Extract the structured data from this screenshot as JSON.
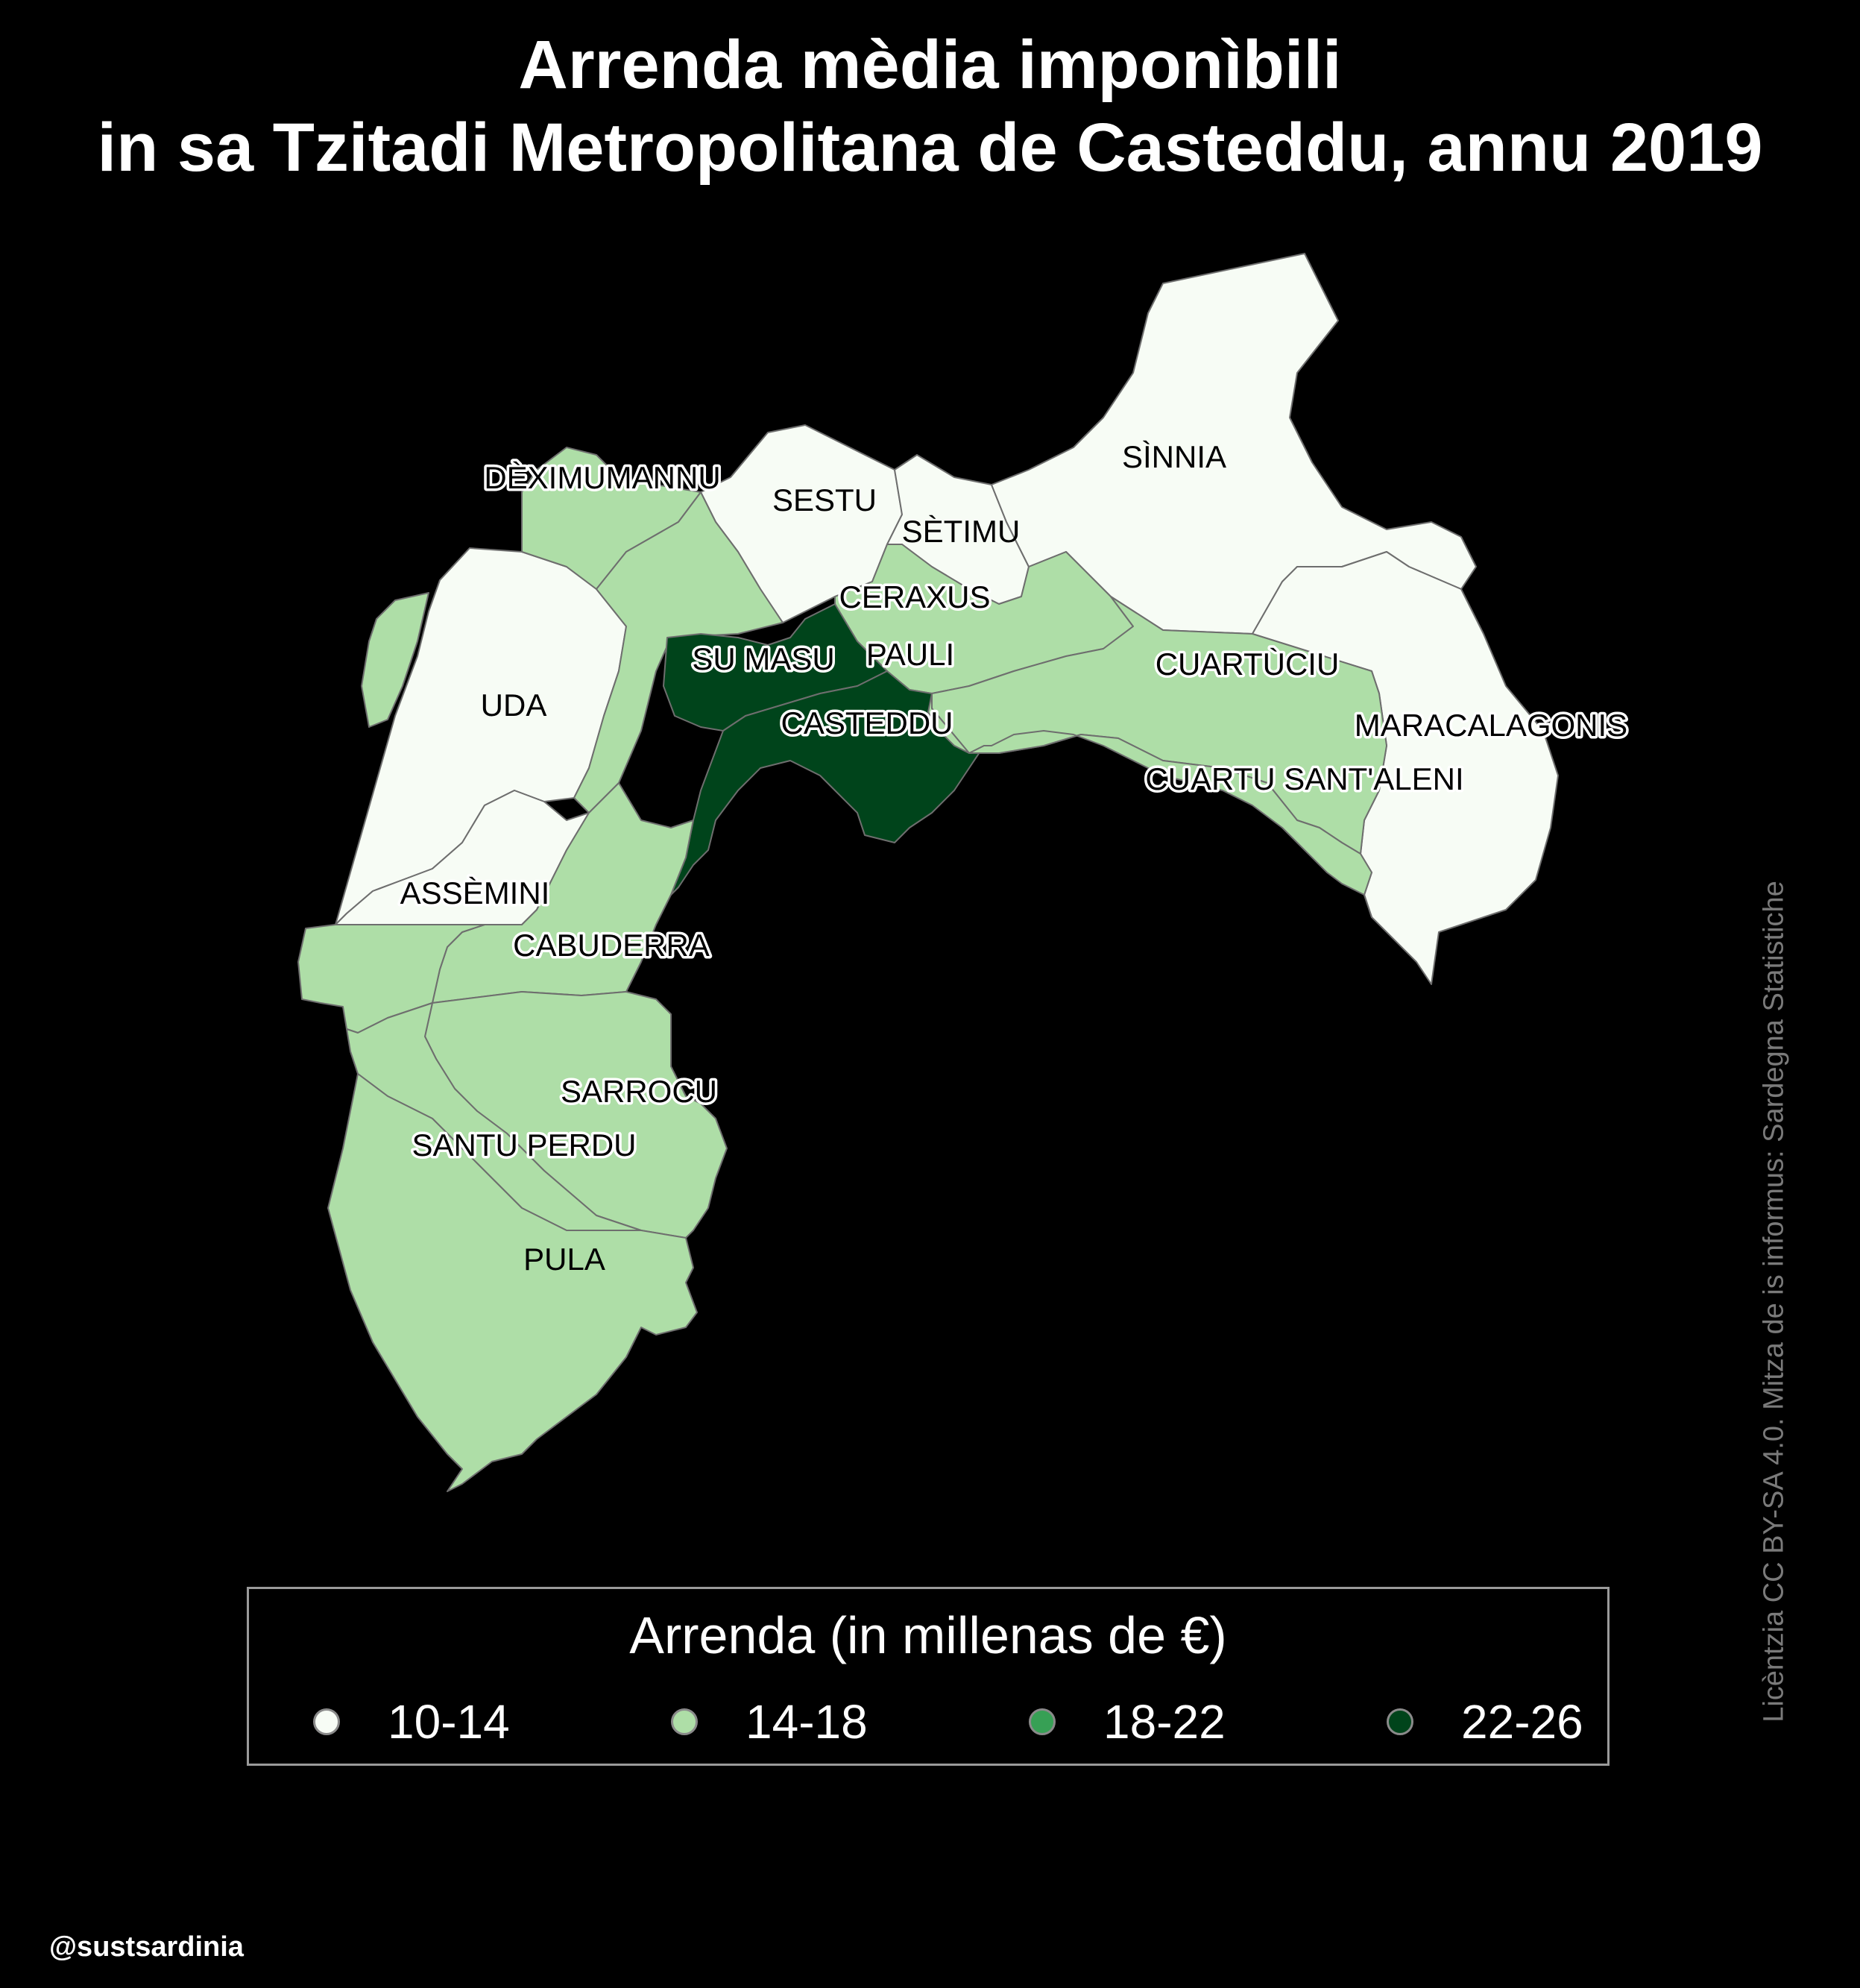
{
  "title": {
    "line1": "Arrenda mèdia imponìbili",
    "line2": "in sa Tzitadi Metropolitana de Casteddu, annu 2019"
  },
  "legend": {
    "title": "Arrenda (in millenas de €)",
    "classes": [
      {
        "label": "10-14",
        "color": "#f7fcf5"
      },
      {
        "label": "14-18",
        "color": "#aedea7"
      },
      {
        "label": "18-22",
        "color": "#37a055"
      },
      {
        "label": "22-26",
        "color": "#00441b"
      }
    ]
  },
  "municipalities": [
    {
      "name": "DÈXIMUMANNU",
      "class": "14-18"
    },
    {
      "name": "SESTU",
      "class": "10-14"
    },
    {
      "name": "SÌNNIA",
      "class": "10-14"
    },
    {
      "name": "SÈTIMU",
      "class": "10-14"
    },
    {
      "name": "CERAXUS",
      "class": "14-18"
    },
    {
      "name": "PAULI",
      "class": "14-18"
    },
    {
      "name": "SU MASU",
      "class": "22-26"
    },
    {
      "name": "UDA",
      "class": "10-14"
    },
    {
      "name": "CASTEDDU",
      "class": "22-26"
    },
    {
      "name": "CUARTÙCIU",
      "class": "14-18"
    },
    {
      "name": "MARACALAGONIS",
      "class": "10-14"
    },
    {
      "name": "CUARTU SANT'ALENI",
      "class": "14-18"
    },
    {
      "name": "ASSÈMINI",
      "class": "10-14"
    },
    {
      "name": "CABUDERRA",
      "class": "14-18"
    },
    {
      "name": "SARROCU",
      "class": "14-18"
    },
    {
      "name": "SANTU PERDU",
      "class": "14-18"
    },
    {
      "name": "PULA",
      "class": "14-18"
    }
  ],
  "credit": "Licèntzia CC BY-SA 4.0. Mitza de is informus: Sardegna Statistiche",
  "handle": "@sustsardinia"
}
